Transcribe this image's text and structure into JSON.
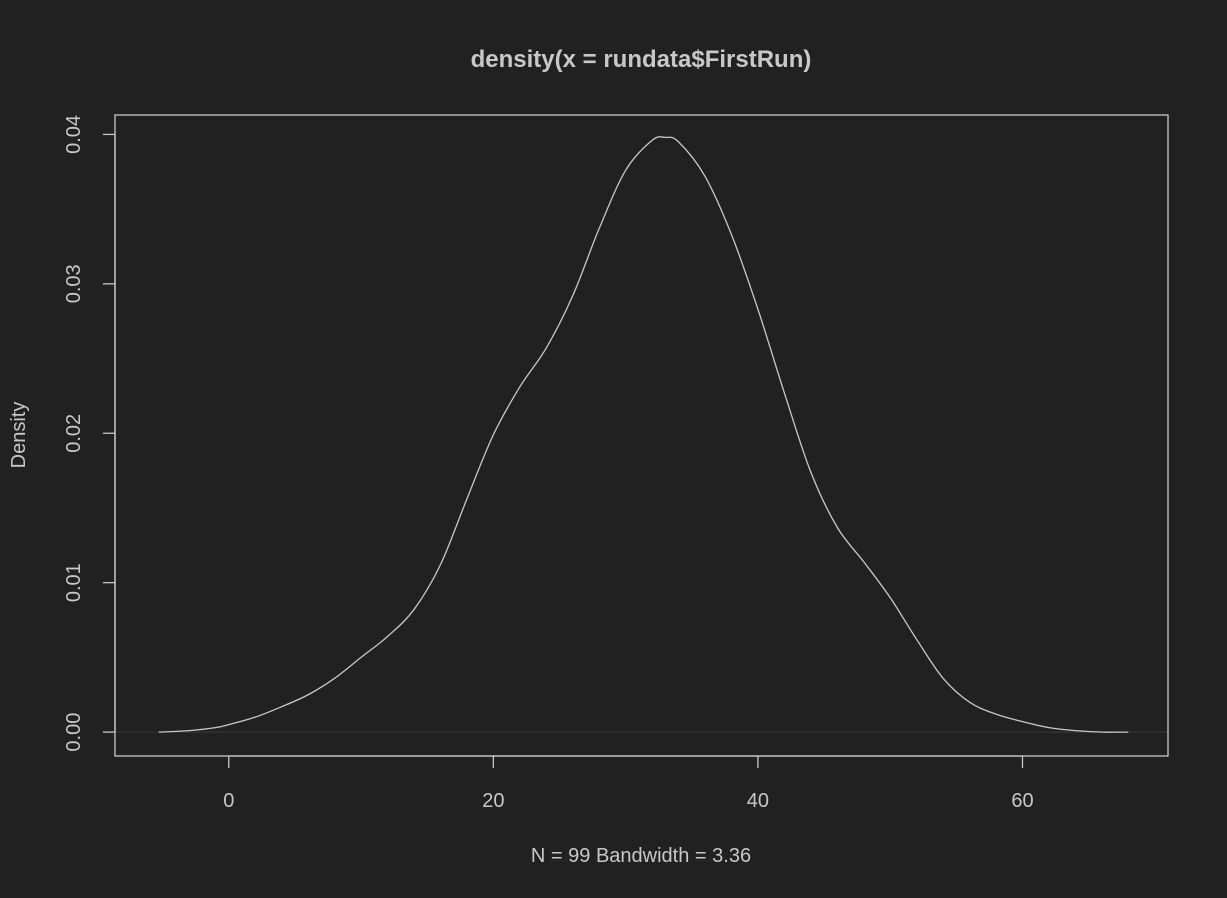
{
  "colors": {
    "background": "#212121",
    "foreground": "#c8c8c8"
  },
  "chart_data": {
    "type": "line",
    "title": "density(x = rundata$FirstRun)",
    "xlabel": "N = 99   Bandwidth = 3.36",
    "ylabel": "Density",
    "xlim": [
      -8.6,
      71.0
    ],
    "ylim": [
      -0.0016,
      0.0413
    ],
    "xticks": [
      0,
      20,
      40,
      60
    ],
    "xtick_labels": [
      "0",
      "20",
      "40",
      "60"
    ],
    "yticks": [
      0.0,
      0.01,
      0.02,
      0.03,
      0.04
    ],
    "ytick_labels": [
      "0.00",
      "0.01",
      "0.02",
      "0.03",
      "0.04"
    ],
    "grid": false,
    "legend": "none",
    "series": [
      {
        "x": [
          -5.3,
          -3.0,
          -1.0,
          0.0,
          2.0,
          4.0,
          6.0,
          8.0,
          10.0,
          12.0,
          14.0,
          16.0,
          18.0,
          20.0,
          22.0,
          24.0,
          26.0,
          28.0,
          30.0,
          32.0,
          33.0,
          34.0,
          36.0,
          38.0,
          40.0,
          42.0,
          44.0,
          46.0,
          48.0,
          50.0,
          52.0,
          54.0,
          56.0,
          58.0,
          60.0,
          62.0,
          64.0,
          66.0,
          68.0
        ],
        "y": [
          0.0,
          0.0001,
          0.0003,
          0.0005,
          0.001,
          0.0017,
          0.0025,
          0.0036,
          0.005,
          0.0064,
          0.0082,
          0.0112,
          0.0156,
          0.0199,
          0.0231,
          0.0257,
          0.0292,
          0.0337,
          0.0376,
          0.0396,
          0.0398,
          0.0395,
          0.0372,
          0.0333,
          0.0283,
          0.0227,
          0.0174,
          0.0137,
          0.0114,
          0.009,
          0.0062,
          0.0036,
          0.002,
          0.0012,
          0.0007,
          0.0003,
          0.0001,
          0.0,
          0.0
        ]
      }
    ]
  }
}
